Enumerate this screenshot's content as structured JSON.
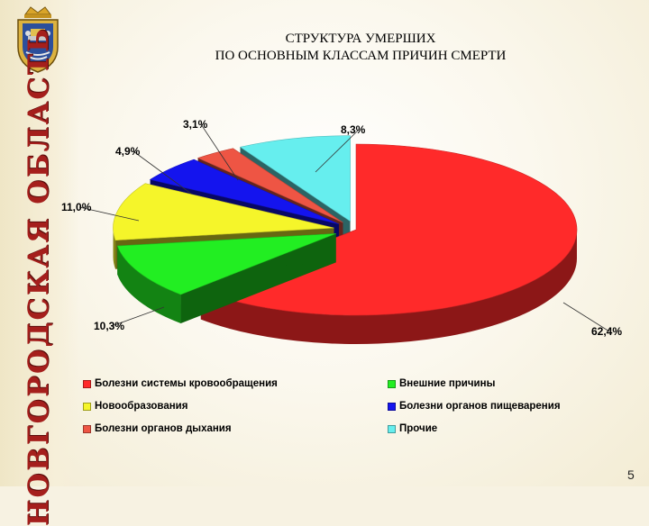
{
  "slide": {
    "region_name": "НОВГОРОДСКАЯ ОБЛАСТЬ",
    "title_line1": "СТРУКТУРА УМЕРШИХ",
    "title_line2": "ПО ОСНОВНЫМ КЛАССАМ ПРИЧИН СМЕРТИ",
    "page_number": "5",
    "emblem_icon": "coat-of-arms-icon"
  },
  "chart_data": {
    "type": "pie",
    "title": "СТРУКТУРА УМЕРШИХ ПО ОСНОВНЫМ КЛАССАМ ПРИЧИН СМЕРТИ",
    "style": "3d-exploded",
    "legend_position": "bottom",
    "slices": [
      {
        "name": "Болезни системы кровообращения",
        "value": 62.4,
        "label": "62,4%",
        "color": "#ff2a2a"
      },
      {
        "name": "Внешние причины",
        "value": 10.3,
        "label": "10,3%",
        "color": "#22ee22"
      },
      {
        "name": "Новообразования",
        "value": 11.0,
        "label": "11,0%",
        "color": "#f5f52a"
      },
      {
        "name": "Болезни органов пищеварения",
        "value": 4.9,
        "label": "4,9%",
        "color": "#1414ee"
      },
      {
        "name": "Болезни органов дыхания",
        "value": 3.1,
        "label": "3,1%",
        "color": "#ee5544"
      },
      {
        "name": "Прочие",
        "value": 8.3,
        "label": "8,3%",
        "color": "#66eeee"
      }
    ]
  }
}
